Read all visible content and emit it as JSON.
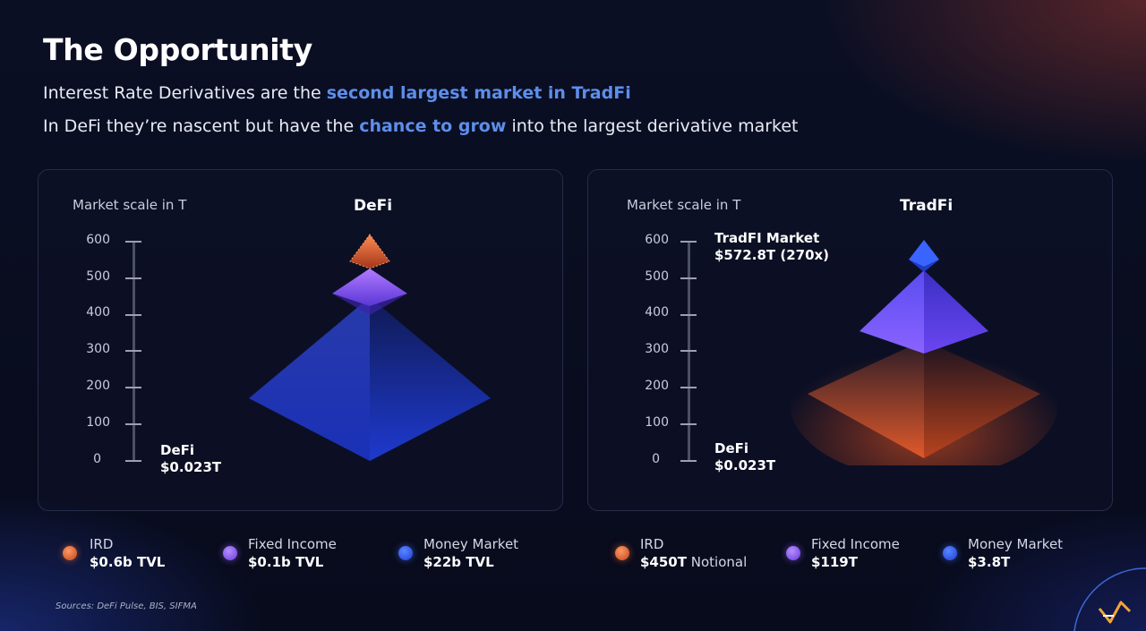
{
  "header": {
    "title": "The Opportunity",
    "line1_prefix": "Interest Rate Derivatives are the ",
    "line1_highlight": "second largest market in TradFi",
    "line2_prefix": "In DeFi they’re nascent but have the ",
    "line2_highlight": "chance to grow",
    "line2_suffix": " into the largest derivative market"
  },
  "defi_panel": {
    "scale_title": "Market scale in T",
    "chart_title": "DeFi",
    "ticks": [
      "600",
      "500",
      "400",
      "300",
      "200",
      "100",
      "0"
    ],
    "annotation_name": "DeFi",
    "annotation_value": "$0.023T"
  },
  "tradfi_panel": {
    "scale_title": "Market scale in T",
    "chart_title": "TradFi",
    "ticks": [
      "600",
      "500",
      "400",
      "300",
      "200",
      "100",
      "0"
    ],
    "top_annotation_name": "TradFI Market",
    "top_annotation_value": "$572.8T (270x)",
    "bottom_annotation_name": "DeFi",
    "bottom_annotation_value": "$0.023T"
  },
  "legend_defi": [
    {
      "name": "IRD",
      "value": "$0.6b TVL"
    },
    {
      "name": "Fixed Income",
      "value": "$0.1b TVL"
    },
    {
      "name": "Money Market",
      "value": "$22b TVL"
    }
  ],
  "legend_tradfi": [
    {
      "name": "IRD",
      "value": "$450T",
      "value_suffix": " Notional"
    },
    {
      "name": "Fixed Income",
      "value": "$119T"
    },
    {
      "name": "Money Market",
      "value": "$3.8T"
    }
  ],
  "sources": "Sources: DeFi Pulse, BIS, SIFMA",
  "colors": {
    "ird": "#e8622e",
    "fixed_income": "#8a5cf0",
    "money_market": "#2f5cf0",
    "highlight": "#5d8eea"
  }
}
